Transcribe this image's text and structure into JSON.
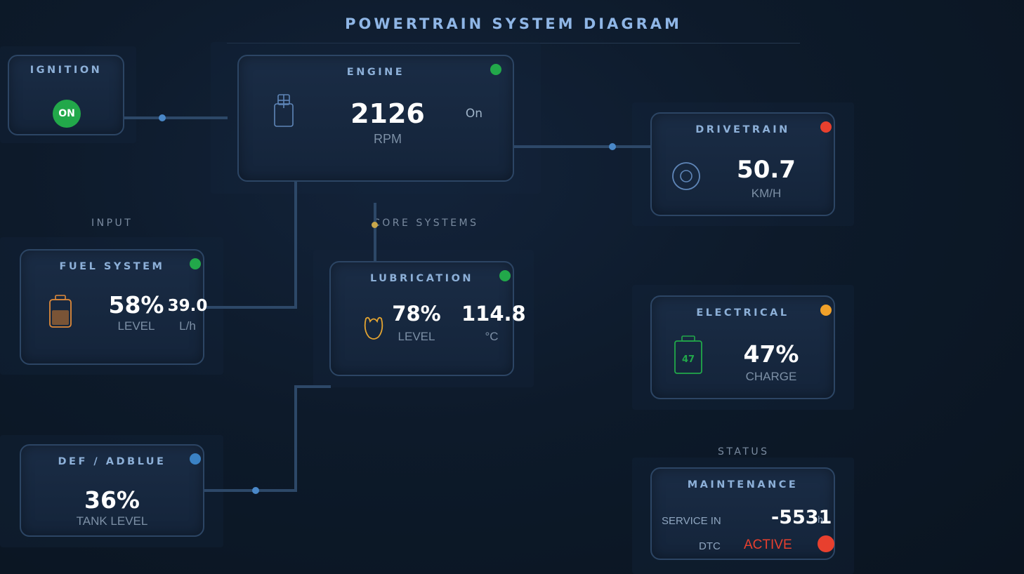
{
  "header": {
    "title": "POWERTRAIN SYSTEM DIAGRAM"
  },
  "sections": {
    "input": "INPUT",
    "core": "CORE SYSTEMS",
    "status": "STATUS"
  },
  "colors": {
    "ok": "#22a84a",
    "fault": "#e8402e",
    "warning": "#f0a12a",
    "info": "#3b82c4"
  },
  "ignition": {
    "title": "IGNITION",
    "state": "ON"
  },
  "engine": {
    "title": "ENGINE",
    "value": "2126",
    "unit": "RPM",
    "state": "On",
    "icon": "engine-icon",
    "status": "ok"
  },
  "drivetrain": {
    "title": "DRIVETRAIN",
    "value": "50.7",
    "unit": "KM/H",
    "icon": "wheel-icon",
    "status": "fault"
  },
  "fuel": {
    "title": "FUEL SYSTEM",
    "level": "58%",
    "level_label": "LEVEL",
    "rate": "39.0",
    "rate_unit": "L/h",
    "icon": "fuel-tank-icon",
    "status": "ok",
    "fill_fraction": 0.58
  },
  "lubrication": {
    "title": "LUBRICATION",
    "level": "78%",
    "level_label": "LEVEL",
    "temp": "114.8",
    "temp_unit": "°C",
    "icon": "oil-drop-icon",
    "status": "ok"
  },
  "electrical": {
    "title": "ELECTRICAL",
    "value": "47%",
    "unit": "CHARGE",
    "battery_text": "47",
    "icon": "battery-icon",
    "status": "warning"
  },
  "def": {
    "title": "DEF / ADBLUE",
    "value": "36%",
    "unit": "TANK LEVEL",
    "status": "info"
  },
  "maintenance": {
    "title": "MAINTENANCE",
    "service_label": "SERVICE IN",
    "service_value": "-5531",
    "service_unit": "h",
    "dtc_label": "DTC",
    "dtc_value": "ACTIVE",
    "status": "fault"
  }
}
